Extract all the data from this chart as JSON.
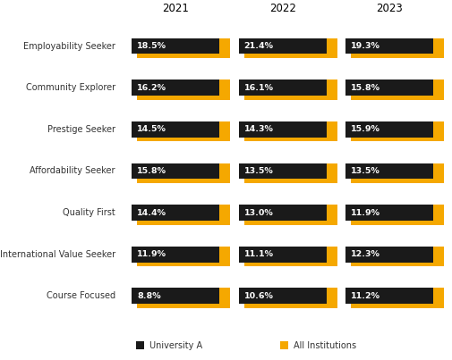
{
  "categories": [
    "Employability Seeker",
    "Community Explorer",
    "Prestige Seeker",
    "Affordability Seeker",
    "Quality First",
    "International Value Seeker",
    "Course Focused"
  ],
  "years": [
    "2021",
    "2022",
    "2023"
  ],
  "university_values": [
    [
      18.5,
      21.4,
      19.3
    ],
    [
      16.2,
      16.1,
      15.8
    ],
    [
      14.5,
      14.3,
      15.9
    ],
    [
      15.8,
      13.5,
      13.5
    ],
    [
      14.4,
      13.0,
      11.9
    ],
    [
      11.9,
      11.1,
      12.3
    ],
    [
      8.8,
      10.6,
      11.2
    ]
  ],
  "bar_color_univ": "#1a1a1a",
  "bar_color_all": "#f5a800",
  "text_color_univ": "#ffffff",
  "background_color": "#ffffff",
  "year_label_color": "#000000",
  "category_label_color": "#333333",
  "legend_univ": "University A",
  "legend_all": "All Institutions"
}
